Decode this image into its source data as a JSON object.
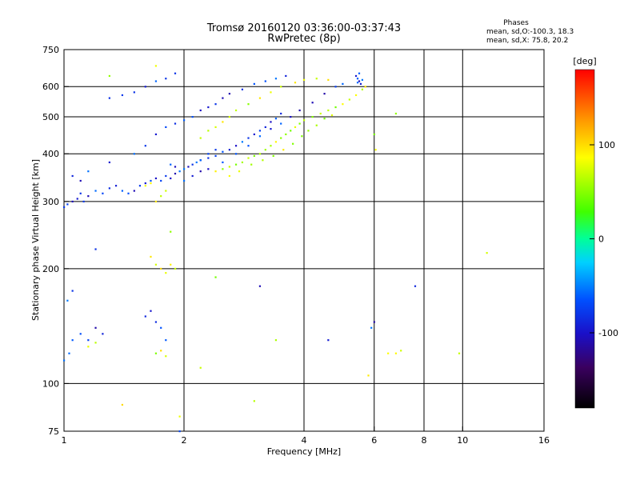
{
  "chart_data": {
    "type": "scatter",
    "title": "Tromsø 20160120 03:36:00-03:37:43",
    "subtitle": "RwPretec (8p)",
    "xlabel": "Frequency [MHz]",
    "ylabel": "Stationary phase Virtual Height [km]",
    "x_scale": "log2",
    "y_scale": "log",
    "xlim": [
      1,
      16
    ],
    "ylim": [
      75,
      750
    ],
    "x_ticks": [
      "1",
      "2",
      "4",
      "6",
      "8",
      "10",
      "16"
    ],
    "x_tick_values": [
      1,
      2,
      4,
      6,
      8,
      10,
      16
    ],
    "y_ticks": [
      "75",
      "100",
      "200",
      "300",
      "400",
      "500",
      "600",
      "750"
    ],
    "y_tick_values": [
      75,
      100,
      200,
      300,
      400,
      500,
      600,
      750
    ],
    "grid_x": [
      2,
      4,
      6,
      8,
      10
    ],
    "grid_y": [
      100,
      200,
      300,
      400,
      500,
      600
    ],
    "phase_stats": {
      "heading": "Phases",
      "line_o": "mean, sd,O:-100.3, 18.3",
      "line_x": "mean, sd,X:  75.8, 20.2"
    },
    "colorbar": {
      "label": "[deg]",
      "ticks": [
        "100",
        "0",
        "-100"
      ],
      "tick_values": [
        100,
        0,
        -100
      ],
      "range": [
        -180,
        180
      ]
    },
    "series": [
      {
        "name": "O",
        "color_value": -100,
        "points": [
          [
            1.0,
            290
          ],
          [
            1.02,
            295
          ],
          [
            1.05,
            300
          ],
          [
            1.08,
            305
          ],
          [
            1.1,
            315
          ],
          [
            1.12,
            300
          ],
          [
            1.15,
            310
          ],
          [
            1.2,
            320
          ],
          [
            1.25,
            315
          ],
          [
            1.3,
            325
          ],
          [
            1.35,
            330
          ],
          [
            1.4,
            320
          ],
          [
            1.45,
            315
          ],
          [
            1.5,
            320
          ],
          [
            1.55,
            330
          ],
          [
            1.6,
            335
          ],
          [
            1.65,
            340
          ],
          [
            1.7,
            345
          ],
          [
            1.75,
            340
          ],
          [
            1.8,
            350
          ],
          [
            1.85,
            345
          ],
          [
            1.9,
            355
          ],
          [
            1.95,
            360
          ],
          [
            2.0,
            365
          ],
          [
            2.05,
            370
          ],
          [
            2.1,
            375
          ],
          [
            2.15,
            380
          ],
          [
            2.2,
            385
          ],
          [
            2.3,
            390
          ],
          [
            2.4,
            395
          ],
          [
            2.5,
            405
          ],
          [
            2.6,
            410
          ],
          [
            2.7,
            420
          ],
          [
            2.8,
            430
          ],
          [
            2.9,
            440
          ],
          [
            3.0,
            450
          ],
          [
            3.1,
            460
          ],
          [
            3.2,
            470
          ],
          [
            3.3,
            485
          ],
          [
            3.4,
            495
          ],
          [
            3.5,
            510
          ],
          [
            1.05,
            350
          ],
          [
            1.1,
            340
          ],
          [
            1.15,
            360
          ],
          [
            1.3,
            380
          ],
          [
            1.5,
            400
          ],
          [
            1.6,
            420
          ],
          [
            1.7,
            450
          ],
          [
            1.8,
            470
          ],
          [
            1.9,
            480
          ],
          [
            2.0,
            490
          ],
          [
            2.1,
            500
          ],
          [
            2.2,
            520
          ],
          [
            2.3,
            530
          ],
          [
            2.4,
            540
          ],
          [
            2.5,
            560
          ],
          [
            2.6,
            575
          ],
          [
            2.8,
            590
          ],
          [
            3.0,
            610
          ],
          [
            3.2,
            620
          ],
          [
            3.4,
            630
          ],
          [
            3.6,
            640
          ],
          [
            1.3,
            560
          ],
          [
            1.4,
            570
          ],
          [
            1.5,
            580
          ],
          [
            1.7,
            620
          ],
          [
            1.8,
            630
          ],
          [
            1.9,
            650
          ],
          [
            1.6,
            600
          ],
          [
            5.4,
            640
          ],
          [
            5.45,
            630
          ],
          [
            5.5,
            620
          ],
          [
            5.55,
            610
          ],
          [
            5.5,
            650
          ],
          [
            5.45,
            615
          ],
          [
            5.6,
            625
          ],
          [
            1.0,
            115
          ],
          [
            1.03,
            120
          ],
          [
            1.05,
            130
          ],
          [
            1.1,
            135
          ],
          [
            1.15,
            130
          ],
          [
            1.2,
            140
          ],
          [
            1.25,
            135
          ],
          [
            1.6,
            150
          ],
          [
            1.65,
            155
          ],
          [
            1.7,
            145
          ],
          [
            1.75,
            140
          ],
          [
            1.8,
            130
          ],
          [
            4.6,
            130
          ],
          [
            5.9,
            140
          ],
          [
            6.0,
            145
          ],
          [
            7.6,
            180
          ],
          [
            1.95,
            75
          ],
          [
            1.2,
            225
          ],
          [
            3.1,
            180
          ],
          [
            1.02,
            165
          ],
          [
            1.05,
            175
          ],
          [
            2.2,
            385
          ],
          [
            2.3,
            400
          ],
          [
            2.4,
            410
          ],
          [
            1.9,
            370
          ],
          [
            1.85,
            375
          ],
          [
            2.0,
            340
          ],
          [
            2.1,
            350
          ],
          [
            2.2,
            360
          ],
          [
            2.3,
            365
          ],
          [
            2.5,
            380
          ],
          [
            2.7,
            400
          ],
          [
            2.9,
            420
          ],
          [
            3.1,
            445
          ],
          [
            3.3,
            465
          ],
          [
            3.5,
            480
          ],
          [
            3.7,
            500
          ],
          [
            3.9,
            520
          ],
          [
            4.2,
            545
          ],
          [
            4.5,
            575
          ],
          [
            4.8,
            600
          ],
          [
            5.0,
            610
          ]
        ]
      },
      {
        "name": "X",
        "color_value": 75,
        "points": [
          [
            2.4,
            360
          ],
          [
            2.5,
            365
          ],
          [
            2.6,
            370
          ],
          [
            2.7,
            375
          ],
          [
            2.8,
            380
          ],
          [
            2.9,
            390
          ],
          [
            3.0,
            395
          ],
          [
            3.1,
            400
          ],
          [
            3.2,
            410
          ],
          [
            3.3,
            420
          ],
          [
            3.4,
            430
          ],
          [
            3.5,
            440
          ],
          [
            3.6,
            450
          ],
          [
            3.7,
            460
          ],
          [
            3.8,
            470
          ],
          [
            3.9,
            480
          ],
          [
            4.0,
            490
          ],
          [
            4.2,
            500
          ],
          [
            4.4,
            510
          ],
          [
            4.6,
            520
          ],
          [
            4.8,
            530
          ],
          [
            5.0,
            540
          ],
          [
            5.2,
            555
          ],
          [
            5.4,
            570
          ],
          [
            5.6,
            590
          ],
          [
            5.7,
            600
          ],
          [
            2.6,
            350
          ],
          [
            2.75,
            360
          ],
          [
            2.95,
            375
          ],
          [
            3.15,
            385
          ],
          [
            3.35,
            395
          ],
          [
            3.55,
            410
          ],
          [
            3.75,
            425
          ],
          [
            3.95,
            445
          ],
          [
            4.1,
            460
          ],
          [
            4.3,
            475
          ],
          [
            4.5,
            495
          ],
          [
            4.7,
            505
          ],
          [
            2.2,
            440
          ],
          [
            2.3,
            460
          ],
          [
            2.4,
            470
          ],
          [
            2.5,
            485
          ],
          [
            2.6,
            500
          ],
          [
            2.7,
            520
          ],
          [
            2.9,
            540
          ],
          [
            3.1,
            560
          ],
          [
            3.3,
            580
          ],
          [
            3.5,
            600
          ],
          [
            3.8,
            615
          ],
          [
            4.0,
            625
          ],
          [
            4.3,
            630
          ],
          [
            4.6,
            625
          ],
          [
            1.7,
            300
          ],
          [
            1.75,
            310
          ],
          [
            1.8,
            320
          ],
          [
            1.6,
            330
          ],
          [
            1.65,
            335
          ],
          [
            1.65,
            215
          ],
          [
            1.7,
            205
          ],
          [
            1.75,
            200
          ],
          [
            1.8,
            195
          ],
          [
            1.85,
            205
          ],
          [
            1.9,
            200
          ],
          [
            1.7,
            120
          ],
          [
            1.75,
            122
          ],
          [
            1.8,
            118
          ],
          [
            1.15,
            125
          ],
          [
            1.2,
            128
          ],
          [
            6.5,
            120
          ],
          [
            6.8,
            120
          ],
          [
            7.0,
            122
          ],
          [
            9.8,
            120
          ],
          [
            5.8,
            105
          ],
          [
            6.05,
            410
          ],
          [
            6.0,
            450
          ],
          [
            3.0,
            90
          ],
          [
            2.2,
            110
          ],
          [
            1.4,
            88
          ],
          [
            1.95,
            82
          ],
          [
            1.85,
            250
          ],
          [
            1.7,
            680
          ],
          [
            1.3,
            640
          ],
          [
            6.8,
            510
          ],
          [
            11.5,
            220
          ],
          [
            3.4,
            130
          ],
          [
            2.4,
            190
          ]
        ]
      }
    ]
  }
}
